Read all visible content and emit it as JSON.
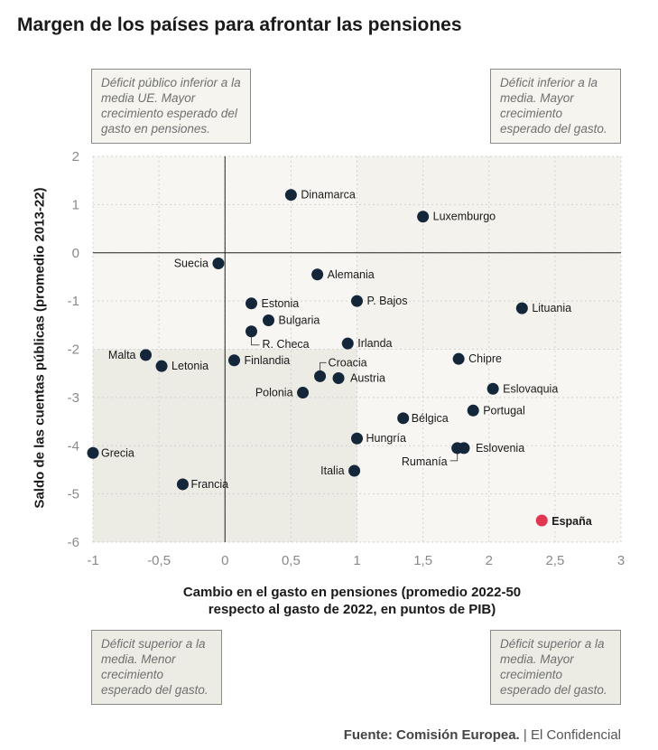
{
  "title": "Margen de los países para afrontar las pensiones",
  "quadrant_notes": {
    "top_left": "Déficit público inferior a la media UE. Mayor crecimiento esperado del gasto en pensiones.",
    "top_right": "Déficit inferior a la media. Mayor crecimiento esperado del gasto.",
    "bottom_left": "Déficit superior a la media. Menor crecimiento esperado del gasto.",
    "bottom_right": "Déficit superior a la media. Mayor crecimiento esperado del gasto."
  },
  "source": {
    "label": "Fuente: Comisión Europea.",
    "outlet": "| El Confidencial"
  },
  "colors": {
    "point": "#14263a",
    "highlight": "#e0364f",
    "quad_light": "#f7f6f2",
    "quad_dark": "#ecebe4"
  },
  "chart_data": {
    "type": "scatter",
    "xlabel": "Cambio en el gasto en pensiones (promedio 2022-50 respecto al gasto de 2022, en puntos de PIB)",
    "ylabel": "Saldo de las cuentas públicas (promedio 2013-22)",
    "xlim": [
      -1,
      3
    ],
    "ylim": [
      -6,
      2
    ],
    "x_ticks": [
      -1,
      -0.5,
      0,
      0.5,
      1,
      1.5,
      2,
      2.5,
      3
    ],
    "x_tick_labels": [
      "-1",
      "-0,5",
      "0",
      "0,5",
      "1",
      "1,5",
      "2",
      "2,5",
      "3"
    ],
    "y_ticks": [
      2,
      1,
      0,
      -1,
      -2,
      -3,
      -4,
      -5,
      -6
    ],
    "y_tick_labels": [
      "2",
      "1",
      "0",
      "-1",
      "-2",
      "-3",
      "-4",
      "-5",
      "-6"
    ],
    "grid": true,
    "reference_lines": {
      "x": 0,
      "y": 0
    },
    "eu_average": {
      "x": 1,
      "y": -2
    },
    "points": [
      {
        "label": "Dinamarca",
        "x": 0.5,
        "y": 1.2
      },
      {
        "label": "Luxemburgo",
        "x": 1.5,
        "y": 0.75
      },
      {
        "label": "Suecia",
        "x": -0.05,
        "y": -0.22
      },
      {
        "label": "Alemania",
        "x": 0.7,
        "y": -0.45
      },
      {
        "label": "Estonia",
        "x": 0.2,
        "y": -1.05
      },
      {
        "label": "P. Bajos",
        "x": 1.0,
        "y": -1.0
      },
      {
        "label": "Lituania",
        "x": 2.25,
        "y": -1.15
      },
      {
        "label": "Bulgaria",
        "x": 0.33,
        "y": -1.4
      },
      {
        "label": "R. Checa",
        "x": 0.2,
        "y": -1.63
      },
      {
        "label": "Irlanda",
        "x": 0.93,
        "y": -1.88
      },
      {
        "label": "Malta",
        "x": -0.6,
        "y": -2.12
      },
      {
        "label": "Letonia",
        "x": -0.48,
        "y": -2.35
      },
      {
        "label": "Finlandia",
        "x": 0.07,
        "y": -2.23
      },
      {
        "label": "Chipre",
        "x": 1.77,
        "y": -2.2
      },
      {
        "label": "Croacia",
        "x": 0.72,
        "y": -2.56
      },
      {
        "label": "Austria",
        "x": 0.86,
        "y": -2.6
      },
      {
        "label": "Polonia",
        "x": 0.59,
        "y": -2.9
      },
      {
        "label": "Eslovaquia",
        "x": 2.03,
        "y": -2.82
      },
      {
        "label": "Portugal",
        "x": 1.88,
        "y": -3.27
      },
      {
        "label": "Bélgica",
        "x": 1.35,
        "y": -3.43
      },
      {
        "label": "Hungría",
        "x": 1.0,
        "y": -3.85
      },
      {
        "label": "Eslovenia",
        "x": 1.81,
        "y": -4.05
      },
      {
        "label": "Rumanía",
        "x": 1.76,
        "y": -4.05
      },
      {
        "label": "Grecia",
        "x": -1.0,
        "y": -4.15
      },
      {
        "label": "Italia",
        "x": 0.98,
        "y": -4.52
      },
      {
        "label": "Francia",
        "x": -0.32,
        "y": -4.8
      },
      {
        "label": "España",
        "x": 2.4,
        "y": -5.55,
        "highlight": true
      }
    ]
  }
}
